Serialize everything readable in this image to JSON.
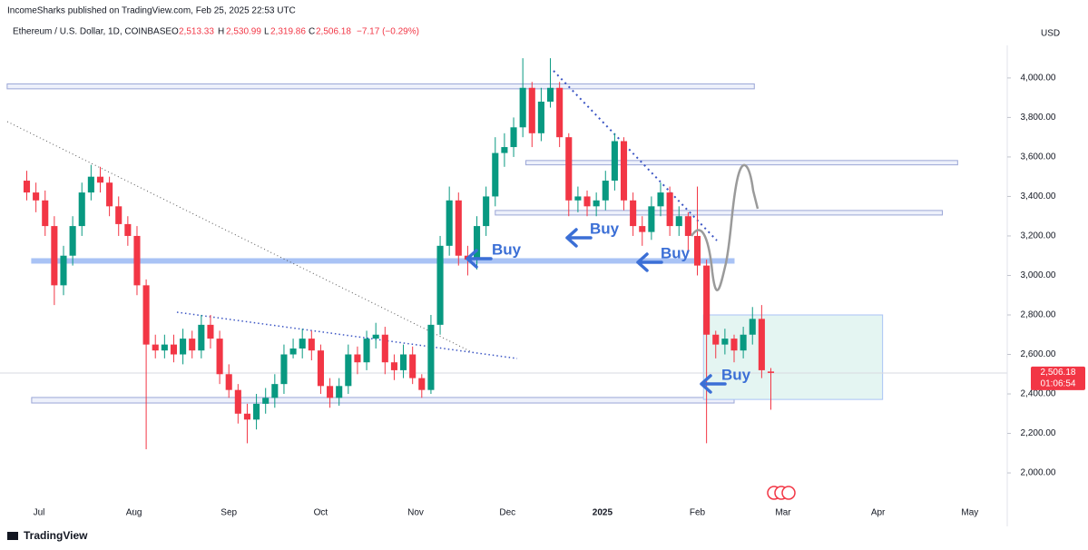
{
  "header": {
    "publisher": "IncomeSharks published on TradingView.com, Feb 25, 2025 22:53 UTC",
    "symbol": "Ethereum / U.S. Dollar, 1D, COINBASE",
    "o_label": "O",
    "o": "2,513.33",
    "h_label": "H",
    "h": "2,530.99",
    "l_label": "L",
    "l": "2,319.86",
    "c_label": "C",
    "c": "2,506.18",
    "change": "−7.17 (−0.29%)",
    "currency": "USD"
  },
  "chart_data": {
    "type": "candlestick",
    "up_color": "#089981",
    "down_color": "#f23645",
    "xlim": [
      -6.74,
      322.2
    ],
    "ylim": [
      1821,
      4165
    ],
    "xticks": [
      {
        "value": 6,
        "label": "Jul"
      },
      {
        "value": 37,
        "label": "Aug"
      },
      {
        "value": 68,
        "label": "Sep"
      },
      {
        "value": 98,
        "label": "Oct"
      },
      {
        "value": 129,
        "label": "Nov"
      },
      {
        "value": 159,
        "label": "Dec"
      },
      {
        "value": 190,
        "label": "2025"
      },
      {
        "value": 221,
        "label": "Feb"
      },
      {
        "value": 249,
        "label": "Mar"
      },
      {
        "value": 280,
        "label": "Apr"
      },
      {
        "value": 310,
        "label": "May"
      }
    ],
    "yticks": [
      {
        "value": 2000,
        "label": "2,000.00"
      },
      {
        "value": 2200,
        "label": "2,200.00"
      },
      {
        "value": 2400,
        "label": "2,400.00"
      },
      {
        "value": 2600,
        "label": "2,600.00"
      },
      {
        "value": 2800,
        "label": "2,800.00"
      },
      {
        "value": 3000,
        "label": "3,000.00"
      },
      {
        "value": 3200,
        "label": "3,200.00"
      },
      {
        "value": 3400,
        "label": "3,400.00"
      },
      {
        "value": 3600,
        "label": "3,600.00"
      },
      {
        "value": 3800,
        "label": "3,800.00"
      },
      {
        "value": 4000,
        "label": "4,000.00"
      }
    ],
    "x": [
      2,
      5,
      8,
      11,
      14,
      17,
      20,
      23,
      26,
      29,
      32,
      35,
      38,
      41,
      44,
      47,
      50,
      53,
      56,
      59,
      62,
      65,
      68,
      71,
      74,
      77,
      80,
      83,
      86,
      89,
      92,
      95,
      98,
      101,
      104,
      107,
      110,
      113,
      116,
      119,
      122,
      125,
      128,
      131,
      134,
      137,
      140,
      143,
      146,
      149,
      152,
      155,
      158,
      161,
      164,
      167,
      170,
      173,
      176,
      179,
      182,
      185,
      188,
      191,
      194,
      197,
      200,
      203,
      206,
      209,
      212,
      215,
      218,
      221,
      224,
      227,
      230,
      233,
      236,
      239,
      242,
      245
    ],
    "open": [
      3480,
      3420,
      3380,
      3250,
      2950,
      3100,
      3250,
      3420,
      3500,
      3470,
      3350,
      3260,
      3200,
      2950,
      2650,
      2620,
      2650,
      2600,
      2680,
      2620,
      2750,
      2680,
      2500,
      2420,
      2300,
      2270,
      2350,
      2380,
      2450,
      2600,
      2630,
      2680,
      2620,
      2440,
      2380,
      2440,
      2600,
      2560,
      2680,
      2700,
      2560,
      2520,
      2600,
      2480,
      2420,
      2750,
      3150,
      3380,
      3100,
      3080,
      3250,
      3400,
      3620,
      3650,
      3750,
      3950,
      3720,
      3880,
      3950,
      3700,
      3380,
      3400,
      3350,
      3380,
      3480,
      3680,
      3380,
      3250,
      3220,
      3350,
      3420,
      3250,
      3300,
      3200,
      3050,
      2700,
      2650,
      2680,
      2620,
      2700,
      2780,
      2513.33
    ],
    "high": [
      3530,
      3470,
      3430,
      3300,
      3150,
      3300,
      3470,
      3560,
      3550,
      3500,
      3400,
      3300,
      3250,
      2980,
      2700,
      2700,
      2700,
      2730,
      2720,
      2800,
      2800,
      2720,
      2550,
      2450,
      2350,
      2400,
      2430,
      2500,
      2650,
      2680,
      2730,
      2720,
      2650,
      2480,
      2480,
      2650,
      2640,
      2720,
      2760,
      2740,
      2600,
      2650,
      2640,
      2500,
      2800,
      3200,
      3450,
      3420,
      3150,
      3300,
      3450,
      3700,
      3720,
      3800,
      4100,
      3980,
      3950,
      4100,
      3980,
      3720,
      3450,
      3430,
      3420,
      3530,
      3720,
      3700,
      3420,
      3300,
      3400,
      3470,
      3450,
      3350,
      3320,
      3450,
      3080,
      2720,
      2730,
      2700,
      2740,
      2840,
      2850,
      2530.99
    ],
    "low": [
      3380,
      3320,
      3200,
      2850,
      2900,
      3050,
      3200,
      3380,
      3420,
      3300,
      3200,
      3150,
      2900,
      2120,
      2580,
      2580,
      2560,
      2550,
      2580,
      2580,
      2630,
      2450,
      2380,
      2250,
      2150,
      2220,
      2300,
      2330,
      2400,
      2580,
      2580,
      2570,
      2400,
      2330,
      2340,
      2400,
      2500,
      2520,
      2630,
      2500,
      2470,
      2480,
      2450,
      2380,
      2400,
      2700,
      3100,
      3050,
      3000,
      3030,
      3200,
      3350,
      3550,
      3600,
      3700,
      3650,
      3680,
      3850,
      3650,
      3300,
      3320,
      3300,
      3300,
      3330,
      3430,
      3330,
      3200,
      3150,
      3180,
      3300,
      3200,
      3200,
      3120,
      3000,
      2150,
      2580,
      2600,
      2560,
      2580,
      2650,
      2480,
      2319.86
    ],
    "close": [
      3420,
      3380,
      3250,
      2950,
      3100,
      3250,
      3420,
      3500,
      3470,
      3350,
      3260,
      3200,
      2950,
      2650,
      2620,
      2650,
      2600,
      2680,
      2620,
      2750,
      2680,
      2500,
      2420,
      2300,
      2270,
      2350,
      2380,
      2450,
      2600,
      2630,
      2680,
      2620,
      2440,
      2380,
      2440,
      2600,
      2560,
      2680,
      2700,
      2560,
      2520,
      2600,
      2480,
      2420,
      2750,
      3150,
      3380,
      3100,
      3080,
      3250,
      3400,
      3620,
      3650,
      3750,
      3950,
      3720,
      3880,
      3950,
      3700,
      3380,
      3400,
      3350,
      3380,
      3480,
      3680,
      3380,
      3250,
      3220,
      3350,
      3420,
      3250,
      3300,
      3200,
      3050,
      2700,
      2650,
      2680,
      2620,
      2700,
      2780,
      2520,
      2506.18
    ],
    "last_price": 2506.18,
    "last_price_label": "2,506.18",
    "countdown": "01:06:54",
    "zones": [
      {
        "x": [
          -4.4,
          239.6
        ],
        "y": [
          3945,
          3970
        ],
        "fill": "#eef1fb",
        "stroke": "#9aa6d6"
      },
      {
        "x": [
          165,
          306
        ],
        "y": [
          3560,
          3582
        ],
        "fill": "#eef1fb",
        "stroke": "#9aa6d6"
      },
      {
        "x": [
          155,
          301
        ],
        "y": [
          3306,
          3329
        ],
        "fill": "#eef1fb",
        "stroke": "#9aa6d6"
      },
      {
        "x": [
          3.6,
          233
        ],
        "y": [
          3062,
          3085
        ],
        "fill": "#a9c3f5",
        "stroke": "#a9c3f5"
      },
      {
        "x": [
          3.6,
          233
        ],
        "y": [
          2354,
          2382
        ],
        "fill": "#eef1fb",
        "stroke": "#9aa6d6"
      },
      {
        "x": [
          223,
          281.5
        ],
        "y": [
          2372,
          2800
        ],
        "fill": "#e4f5f2",
        "stroke": "#a9c3f5"
      }
    ],
    "annotations": [
      "Buy",
      "Buy",
      "Buy",
      "Buy"
    ]
  }
}
